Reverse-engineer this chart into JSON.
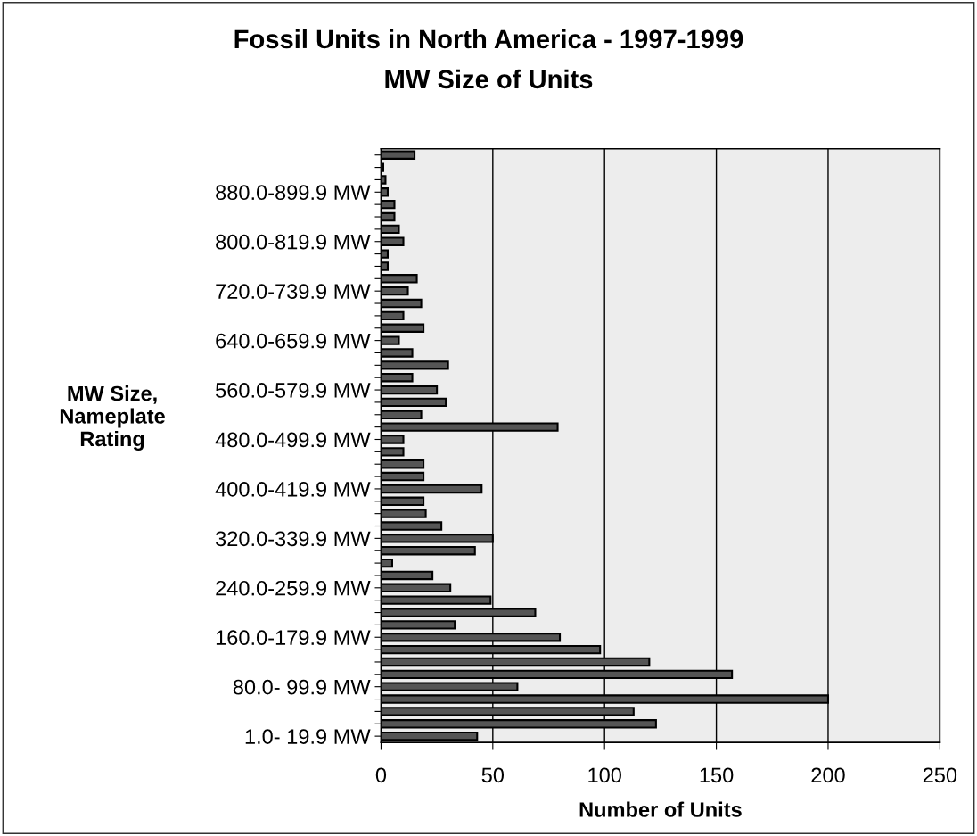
{
  "chart_data": {
    "type": "bar",
    "orientation": "horizontal",
    "title": "Fossil Units in North America - 1997-1999",
    "subtitle": "MW Size of Units",
    "xlabel": "Number of Units",
    "ylabel": "MW Size,\nNameplate\nRating",
    "categories": [
      null,
      null,
      null,
      "880.0-899.9 MW",
      null,
      null,
      null,
      "800.0-819.9 MW",
      null,
      null,
      null,
      "720.0-739.9 MW",
      null,
      null,
      null,
      "640.0-659.9 MW",
      null,
      null,
      null,
      "560.0-579.9 MW",
      null,
      null,
      null,
      "480.0-499.9 MW",
      null,
      null,
      null,
      "400.0-419.9 MW",
      null,
      null,
      null,
      "320.0-339.9 MW",
      null,
      null,
      null,
      "240.0-259.9 MW",
      null,
      null,
      null,
      "160.0-179.9 MW",
      null,
      null,
      null,
      "80.0- 99.9 MW",
      null,
      null,
      null,
      "1.0- 19.9 MW"
    ],
    "values": [
      15,
      1,
      2,
      3,
      6,
      6,
      8,
      10,
      3,
      3,
      16,
      12,
      18,
      10,
      19,
      8,
      14,
      30,
      14,
      25,
      29,
      18,
      79,
      10,
      10,
      19,
      19,
      45,
      19,
      20,
      27,
      50,
      42,
      5,
      23,
      31,
      49,
      69,
      33,
      80,
      98,
      120,
      157,
      61,
      200,
      113,
      123,
      43
    ],
    "color": "#555555",
    "xlim": [
      0,
      250
    ],
    "xticks": [
      0,
      50,
      100,
      150,
      200,
      250
    ],
    "grid": "x",
    "legend": false
  }
}
